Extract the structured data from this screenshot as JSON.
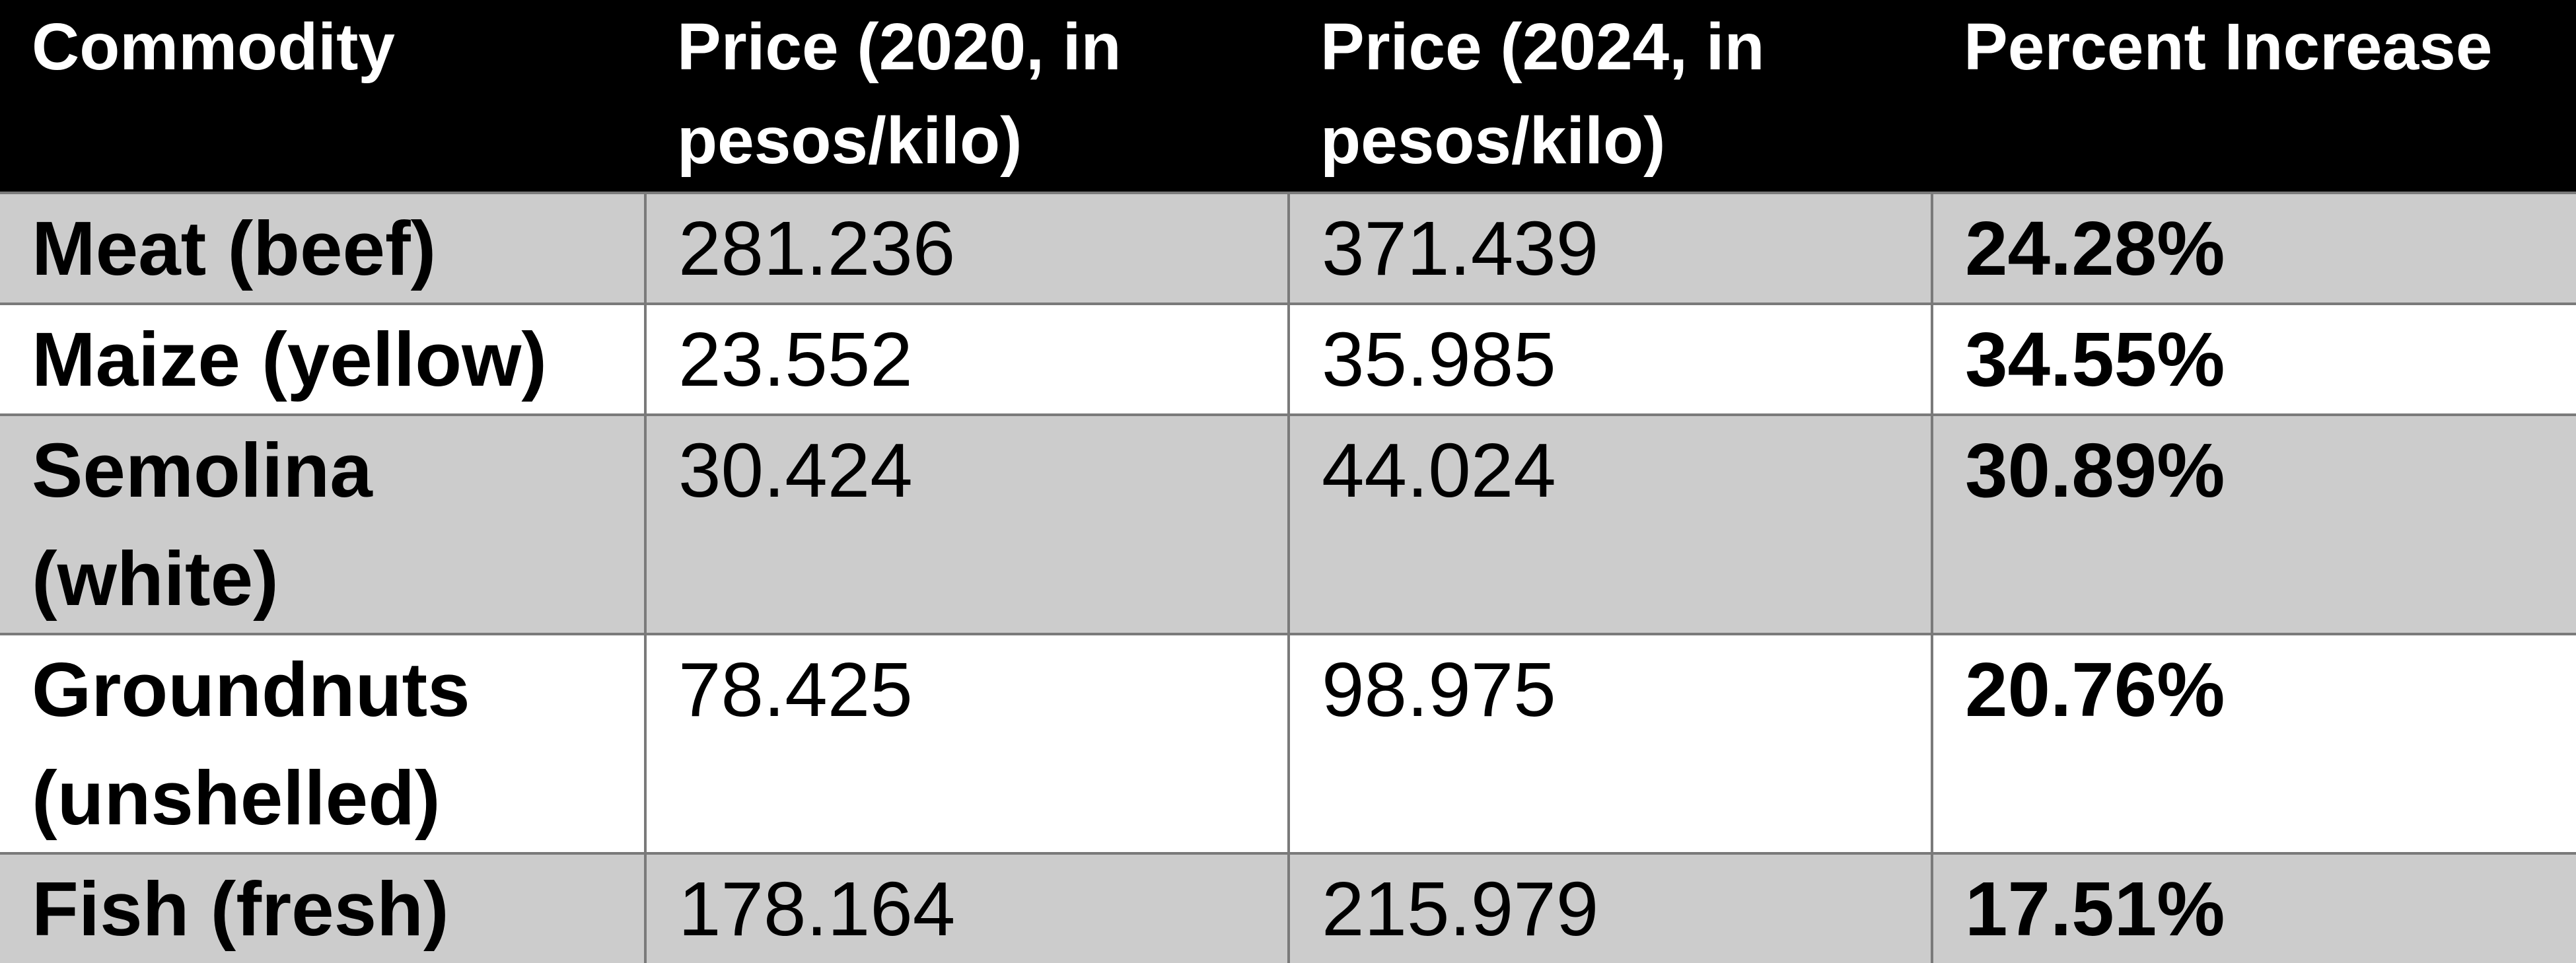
{
  "table": {
    "headers": [
      "Commodity",
      "Price (2020, in pesos/kilo)",
      "Price (2024, in pesos/kilo)",
      "Percent Increase"
    ],
    "rows": [
      {
        "commodity": "Meat (beef)",
        "price_2020": "281.236",
        "price_2024": "371.439",
        "percent_increase": "24.28%"
      },
      {
        "commodity": "Maize (yellow)",
        "price_2020": "23.552",
        "price_2024": "35.985",
        "percent_increase": "34.55%"
      },
      {
        "commodity": "Semolina (white)",
        "price_2020": "30.424",
        "price_2024": "44.024",
        "percent_increase": "30.89%"
      },
      {
        "commodity": "Groundnuts (unshelled)",
        "price_2020": "78.425",
        "price_2024": "98.975",
        "percent_increase": "20.76%"
      },
      {
        "commodity": "Fish (fresh)",
        "price_2020": "178.164",
        "price_2024": "215.979",
        "percent_increase": "17.51%"
      }
    ]
  },
  "colors": {
    "header_bg": "#000000",
    "header_text": "#ffffff",
    "row_gray": "#cccccc",
    "row_white": "#ffffff",
    "grid_line": "#7a7a7a"
  }
}
